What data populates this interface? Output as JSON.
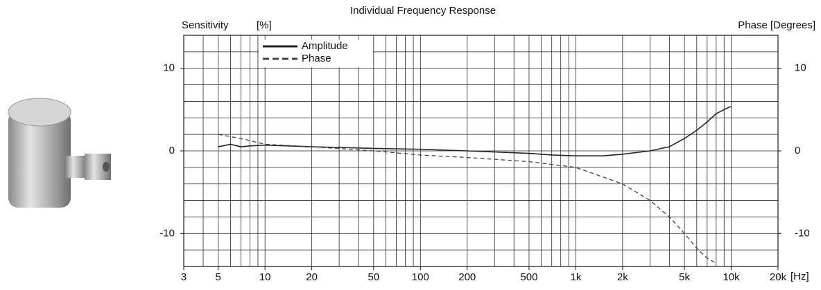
{
  "chart_data": {
    "type": "line",
    "title": "Individual Frequency Response",
    "ylabel": "Sensitivity",
    "ylabel_unit": "[%]",
    "y2label": "Phase [Degrees]",
    "xlabel": "[Hz]",
    "xscale": "log",
    "xlim": [
      3,
      20000
    ],
    "xticks": [
      3,
      5,
      10,
      20,
      50,
      100,
      200,
      500,
      {
        "value": 1000,
        "label": "1k"
      },
      {
        "value": 2000,
        "label": "2k"
      },
      {
        "value": 5000,
        "label": "5k"
      },
      {
        "value": 10000,
        "label": "10k"
      },
      {
        "value": 20000,
        "label": "20k"
      }
    ],
    "xgrid": [
      3,
      4,
      5,
      6,
      7,
      8,
      9,
      10,
      20,
      30,
      40,
      50,
      60,
      70,
      80,
      90,
      100,
      200,
      300,
      400,
      500,
      600,
      700,
      800,
      900,
      1000,
      2000,
      3000,
      4000,
      5000,
      6000,
      7000,
      8000,
      9000,
      10000,
      20000
    ],
    "ylim": [
      -14,
      14
    ],
    "yticks": [
      -10,
      0,
      10
    ],
    "ygrid": [
      -12,
      -10,
      -8,
      -6,
      -4,
      -2,
      0,
      2,
      4,
      6,
      8,
      10,
      12
    ],
    "y2lim": [
      -14,
      14
    ],
    "y2ticks": [
      -10,
      0,
      10
    ],
    "legend": "upper-left",
    "series": [
      {
        "name": "Amplitude",
        "color": "#222222",
        "style": "solid",
        "x": [
          5,
          6,
          7,
          8,
          10,
          20,
          50,
          100,
          200,
          500,
          700,
          1000,
          1500,
          2000,
          3000,
          4000,
          5000,
          6000,
          7000,
          8000,
          9000,
          10000
        ],
        "values": [
          0.5,
          0.8,
          0.5,
          0.6,
          0.7,
          0.5,
          0.3,
          0.2,
          0,
          -0.3,
          -0.5,
          -0.6,
          -0.6,
          -0.4,
          0,
          0.5,
          1.5,
          2.5,
          3.5,
          4.5,
          5,
          5.4
        ]
      },
      {
        "name": "Phase",
        "color": "#444444",
        "style": "dashed",
        "axis": "y2",
        "x": [
          5,
          7,
          10,
          20,
          50,
          100,
          200,
          500,
          1000,
          2000,
          3000,
          4000,
          5000,
          6000,
          7000,
          8000
        ],
        "values": [
          2,
          1.5,
          0.8,
          0.5,
          0,
          -0.5,
          -0.8,
          -1.3,
          -2,
          -4,
          -6,
          -8,
          -10,
          -11.8,
          -13,
          -13.6
        ]
      }
    ]
  }
}
